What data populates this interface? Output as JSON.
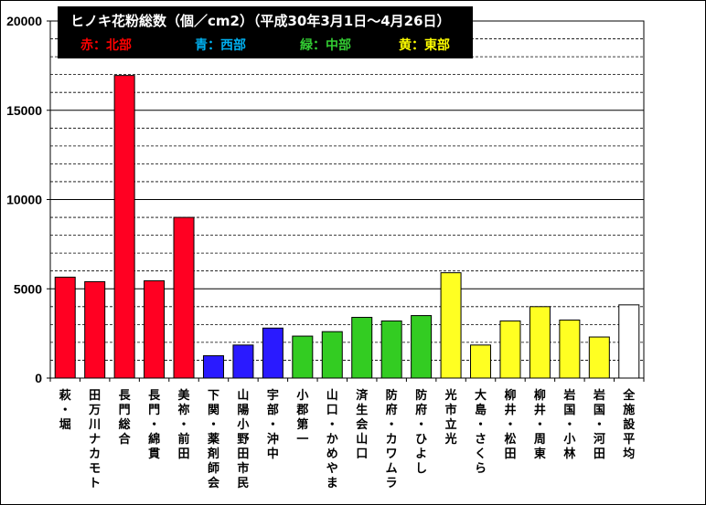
{
  "chart_data": {
    "type": "bar",
    "title": "ヒノキ花粉総数（個／cm2）（平成30年3月1日～4月26日）",
    "legend": [
      {
        "label": "赤：北部",
        "color": "#ff0000"
      },
      {
        "label": "青：西部",
        "color": "#00b0f0"
      },
      {
        "label": "緑：中部",
        "color": "#33cc33"
      },
      {
        "label": "黄：東部",
        "color": "#ffff00"
      }
    ],
    "ylim": [
      0,
      20000
    ],
    "yticks": [
      "0",
      "5000",
      "10000",
      "15000",
      "20000"
    ],
    "ytick_values": [
      0,
      5000,
      10000,
      15000,
      20000
    ],
    "minor_grid_step": 1000,
    "categories": [
      "萩・堀",
      "田万川ナカモト",
      "長門総合",
      "長門・綿貫",
      "美祢・前田",
      "下関・薬剤師会",
      "山陽小野田市民",
      "宇部・沖中",
      "小郡第一",
      "山口・かめやま",
      "済生会山口",
      "防府・カワムラ",
      "防府・ひよし",
      "光市立光",
      "大島・さくら",
      "柳井・松田",
      "柳井・周東",
      "岩国・小林",
      "岩国・河田",
      "全施設平均"
    ],
    "values": [
      5650,
      5400,
      16950,
      5450,
      9000,
      1250,
      1850,
      2800,
      2350,
      2600,
      3400,
      3200,
      3500,
      5900,
      1850,
      3200,
      4000,
      3250,
      2300,
      4100
    ],
    "colors": [
      "#ff0022",
      "#ff0022",
      "#ff0022",
      "#ff0022",
      "#ff0022",
      "#2a1aff",
      "#2a1aff",
      "#2a1aff",
      "#33cc22",
      "#33cc22",
      "#33cc22",
      "#33cc22",
      "#33cc22",
      "#ffff22",
      "#ffff22",
      "#ffff22",
      "#ffff22",
      "#ffff22",
      "#ffff22",
      "#ffffff"
    ]
  }
}
